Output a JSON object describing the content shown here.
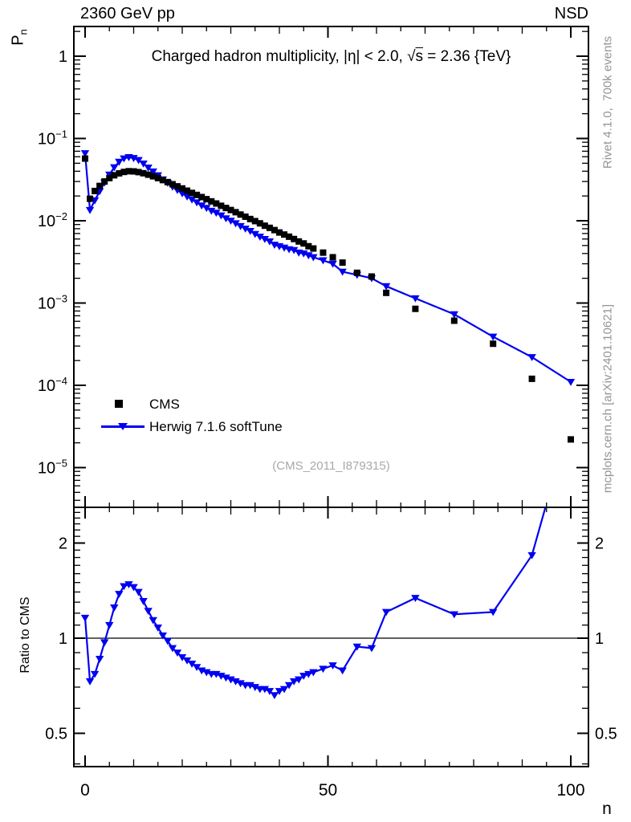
{
  "header": {
    "left": "2360 GeV pp",
    "right": "NSD"
  },
  "title": {
    "prefix": "Charged hadron multiplicity, |η| < 2.0, ",
    "sqrt_sym": "√",
    "sqrt_arg": "s",
    "suffix": " = 2.36 {TeV}"
  },
  "side_notes": {
    "top_right": "Rivet 4.1.0,  700k events",
    "bottom_right": "mcplots.cern.ch [arXiv:2401.10621]"
  },
  "watermark": "(CMS_2011_I879315)",
  "legend": {
    "items": [
      {
        "label": "CMS",
        "marker": "black-square"
      },
      {
        "label": "Herwig 7.1.6 softTune",
        "marker": "blue-line-triangle"
      }
    ]
  },
  "colors": {
    "data": "#000000",
    "mc": "#0000f0",
    "gray_text": "#949494",
    "watermark": "#a9a9a9"
  },
  "axes": {
    "main": {
      "ylabel_base": "P",
      "ylabel_sub": "n",
      "tick_exponents": [
        0,
        -1,
        -2,
        -3,
        -4,
        -5
      ],
      "scale": "log"
    },
    "ratio": {
      "ylabel": "Ratio to CMS",
      "ticks": [
        "2",
        "1",
        "0.5"
      ],
      "tick_values": [
        2,
        1,
        0.5
      ],
      "minor_ticks": [
        0.4,
        0.6,
        0.7,
        0.8,
        0.9,
        1.1,
        1.2,
        1.3,
        1.4,
        1.5,
        1.6,
        1.7,
        1.8,
        1.9,
        2.1,
        2.2,
        2.3,
        2.4,
        2.5
      ],
      "scale": "log"
    },
    "x": {
      "label": "n",
      "ticks": [
        0,
        50,
        100
      ],
      "minor_step": 5,
      "lim": [
        -2.3,
        103.6
      ]
    }
  },
  "chart_data": {
    "type": "scatter+line, log-y main panel with log-y ratio subpanel",
    "title": "Charged hadron multiplicity, |η| < 2.0, √s = 2.36 {TeV}",
    "xlabel": "n",
    "ylabel": "P_n",
    "ylim_main": [
      3.3e-06,
      2.3
    ],
    "ylim_ratio": [
      0.39,
      2.6
    ],
    "x": [
      0,
      1,
      2,
      3,
      4,
      5,
      6,
      7,
      8,
      9,
      10,
      11,
      12,
      13,
      14,
      15,
      16,
      17,
      18,
      19,
      20,
      21,
      22,
      23,
      24,
      25,
      26,
      27,
      28,
      29,
      30,
      31,
      32,
      33,
      34,
      35,
      36,
      37,
      38,
      39,
      40,
      41,
      42,
      43,
      44,
      45,
      46,
      47,
      49,
      51,
      53,
      56,
      59,
      62,
      68,
      76,
      84,
      92,
      100
    ],
    "series": [
      {
        "name": "CMS",
        "style": "markers-only",
        "marker": "filled-square",
        "color": "#000000",
        "values": [
          0.057,
          0.0185,
          0.023,
          0.0265,
          0.03,
          0.033,
          0.0357,
          0.0377,
          0.0392,
          0.04,
          0.0398,
          0.039,
          0.0378,
          0.0363,
          0.0347,
          0.033,
          0.0312,
          0.0295,
          0.0278,
          0.0262,
          0.0247,
          0.0232,
          0.0218,
          0.0206,
          0.0194,
          0.0183,
          0.0172,
          0.0162,
          0.0152,
          0.0143,
          0.0135,
          0.0127,
          0.0119,
          0.0112,
          0.0105,
          0.0099,
          0.0093,
          0.0087,
          0.0082,
          0.0077,
          0.0072,
          0.0068,
          0.0064,
          0.006,
          0.0056,
          0.0053,
          0.0049,
          0.0046,
          0.0041,
          0.0036,
          0.0031,
          0.00233,
          0.0021,
          0.00133,
          0.00085,
          0.00061,
          0.00032,
          0.00012,
          2.2e-05
        ]
      },
      {
        "name": "Herwig 7.1.6 softTune",
        "style": "line+markers",
        "marker": "filled-triangle-down",
        "color": "#0000f0",
        "values": [
          0.0661,
          0.0135,
          0.0177,
          0.0228,
          0.0291,
          0.0363,
          0.0446,
          0.052,
          0.0572,
          0.0592,
          0.0577,
          0.0546,
          0.0495,
          0.0443,
          0.0396,
          0.0356,
          0.0318,
          0.0289,
          0.0259,
          0.0236,
          0.0215,
          0.0197,
          0.0181,
          0.0167,
          0.0153,
          0.0143,
          0.0132,
          0.0125,
          0.0116,
          0.0107,
          0.01,
          0.0093,
          0.0086,
          0.008,
          0.0075,
          0.0069,
          0.0064,
          0.006,
          0.0056,
          0.0051,
          0.0049,
          0.0047,
          0.0045,
          0.0044,
          0.0041,
          0.004,
          0.0038,
          0.0036,
          0.0033,
          0.003,
          0.0024,
          0.0022,
          0.002,
          0.0016,
          0.00114,
          0.00073,
          0.00039,
          0.00022,
          0.00011
        ]
      }
    ],
    "ratio": {
      "name": "Herwig 7.1.6 softTune / CMS",
      "values": [
        1.16,
        0.73,
        0.77,
        0.86,
        0.97,
        1.1,
        1.25,
        1.38,
        1.46,
        1.48,
        1.45,
        1.4,
        1.31,
        1.22,
        1.14,
        1.08,
        1.02,
        0.98,
        0.93,
        0.9,
        0.87,
        0.85,
        0.83,
        0.81,
        0.79,
        0.78,
        0.77,
        0.77,
        0.76,
        0.75,
        0.74,
        0.73,
        0.72,
        0.71,
        0.71,
        0.7,
        0.69,
        0.69,
        0.68,
        0.66,
        0.68,
        0.69,
        0.71,
        0.73,
        0.74,
        0.76,
        0.77,
        0.78,
        0.8,
        0.82,
        0.79,
        0.94,
        0.93,
        1.21,
        1.34,
        1.19,
        1.21,
        1.83,
        5.0
      ]
    },
    "legend_position": "center-left of main panel",
    "grid": false
  }
}
